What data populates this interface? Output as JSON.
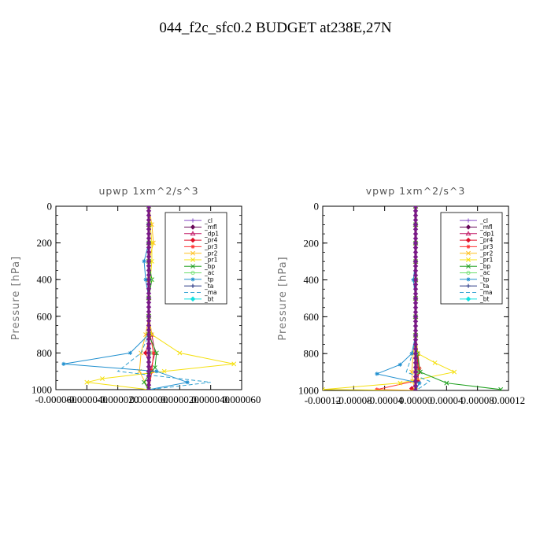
{
  "title": "044_f2c_sfc0.2  BUDGET at238E,27N",
  "chart_data": [
    {
      "type": "line",
      "title": "upwp   1xm^2/s^3",
      "ylabel": "Pressure [hPa]",
      "xlim": [
        -6e-05,
        6e-05
      ],
      "ylim": [
        1000,
        0
      ],
      "xticks": [
        -6e-05,
        -4e-05,
        -2e-05,
        0,
        2e-05,
        4e-05,
        6e-05
      ],
      "xtick_labels": [
        "-0.000060",
        "-0.000040",
        "-0.000020",
        "0.000000",
        "0.000020",
        "0.000040",
        "0.000060"
      ],
      "yticks": [
        0,
        200,
        400,
        600,
        800,
        1000
      ],
      "ytick_labels": [
        "0",
        "200",
        "400",
        "600",
        "800",
        "1000"
      ],
      "legend_position": "top-right",
      "series": [
        {
          "name": "_cl",
          "color": "#8a4fc9",
          "marker": "plus",
          "dash": "",
          "x": [
            0,
            0,
            0,
            0,
            0,
            0,
            0,
            0,
            0,
            0,
            0
          ],
          "y": [
            0,
            100,
            200,
            300,
            400,
            500,
            600,
            700,
            800,
            900,
            1000
          ]
        },
        {
          "name": "_mfl",
          "color": "#6a0a5a",
          "marker": "diamond",
          "dash": "",
          "x": [
            0,
            0,
            0,
            0,
            0,
            0,
            0,
            0,
            0,
            0,
            0
          ],
          "y": [
            0,
            100,
            200,
            300,
            400,
            500,
            600,
            700,
            800,
            900,
            1000
          ]
        },
        {
          "name": "_dp1",
          "color": "#c01060",
          "marker": "tri",
          "dash": "",
          "x": [
            0,
            0,
            0,
            0,
            0,
            0,
            0,
            2e-06,
            4e-06,
            1e-06,
            0
          ],
          "y": [
            0,
            100,
            200,
            300,
            400,
            500,
            600,
            700,
            800,
            900,
            1000
          ]
        },
        {
          "name": "_pr4",
          "color": "#e0102a",
          "marker": "diamond",
          "dash": "",
          "x": [
            0,
            0,
            0,
            0,
            0,
            0,
            0,
            1e-06,
            -2e-06,
            2e-06,
            0
          ],
          "y": [
            0,
            100,
            200,
            300,
            400,
            500,
            600,
            700,
            800,
            900,
            1000
          ]
        },
        {
          "name": "_pr3",
          "color": "#ff3030",
          "marker": "star",
          "dash": "",
          "x": [
            0,
            0,
            0,
            0,
            0,
            0,
            0,
            1e-06,
            3e-06,
            2e-06,
            0
          ],
          "y": [
            0,
            100,
            200,
            300,
            400,
            500,
            600,
            700,
            800,
            900,
            1000
          ]
        },
        {
          "name": "_pr2",
          "color": "#ffc020",
          "marker": "cross",
          "dash": "",
          "x": [
            0,
            2e-06,
            3e-06,
            0,
            0,
            0,
            0,
            -2e-06,
            -5e-06,
            -6e-06,
            0
          ],
          "y": [
            0,
            100,
            200,
            300,
            400,
            500,
            600,
            700,
            800,
            900,
            1000
          ]
        },
        {
          "name": "_pr1",
          "color": "#f5e010",
          "marker": "cross",
          "dash": "",
          "x": [
            0,
            1e-06,
            2e-06,
            2e-06,
            1e-06,
            0,
            0,
            2e-06,
            2e-05,
            5.5e-05,
            1e-05,
            -3e-05,
            -4e-05,
            0
          ],
          "y": [
            0,
            100,
            200,
            300,
            400,
            500,
            600,
            700,
            800,
            860,
            900,
            940,
            960,
            1000
          ]
        },
        {
          "name": "_bp",
          "color": "#20a020",
          "marker": "cross",
          "dash": "",
          "x": [
            0,
            0,
            0,
            0,
            2e-06,
            0,
            0,
            0,
            5e-06,
            4e-06,
            0,
            -3e-06,
            0
          ],
          "y": [
            0,
            100,
            200,
            300,
            400,
            500,
            600,
            700,
            800,
            880,
            920,
            960,
            1000
          ]
        },
        {
          "name": "_ac",
          "color": "#70e070",
          "marker": "circle",
          "dash": "",
          "x": [
            0,
            0,
            0,
            0,
            1e-06,
            0,
            0,
            0,
            1e-06,
            0,
            0
          ],
          "y": [
            0,
            100,
            200,
            300,
            400,
            500,
            600,
            700,
            800,
            900,
            1000
          ]
        },
        {
          "name": "_tp",
          "color": "#1f8fcf",
          "marker": "star",
          "dash": "",
          "x": [
            0,
            0,
            0,
            -3e-06,
            -2e-06,
            0,
            0,
            0,
            -1.2e-05,
            -5.5e-05,
            5e-06,
            2.5e-05,
            0
          ],
          "y": [
            0,
            100,
            200,
            300,
            400,
            500,
            600,
            700,
            800,
            860,
            900,
            960,
            1000
          ]
        },
        {
          "name": "_ta",
          "color": "#203080",
          "marker": "plus",
          "dash": "",
          "x": [
            0,
            0,
            0,
            0,
            0,
            0,
            0,
            0,
            0,
            0,
            0
          ],
          "y": [
            0,
            100,
            200,
            300,
            400,
            500,
            600,
            700,
            800,
            900,
            1000
          ]
        },
        {
          "name": "_ma",
          "color": "#30a0d0",
          "marker": "none",
          "dash": "5 3",
          "x": [
            0,
            0,
            0,
            0,
            0,
            0,
            0,
            0,
            -5e-06,
            -2e-05,
            4e-05,
            2e-05,
            0
          ],
          "y": [
            0,
            100,
            200,
            300,
            400,
            500,
            600,
            700,
            800,
            900,
            960,
            980,
            1000
          ]
        },
        {
          "name": "_bt",
          "color": "#10e0e0",
          "marker": "diamond",
          "dash": "",
          "x": [
            0,
            0,
            0,
            0,
            0,
            0,
            0,
            0,
            0,
            0,
            0
          ],
          "y": [
            0,
            100,
            200,
            300,
            400,
            500,
            600,
            700,
            800,
            900,
            1000
          ]
        }
      ]
    },
    {
      "type": "line",
      "title": "vpwp   1xm^2/s^3",
      "ylabel": "Pressure [hPa]",
      "xlim": [
        -0.00012,
        0.00012
      ],
      "ylim": [
        1000,
        0
      ],
      "xticks": [
        -0.00012,
        -8e-05,
        -4e-05,
        0,
        4e-05,
        8e-05,
        0.00012
      ],
      "xtick_labels": [
        "-0.00012",
        "-0.00008",
        "-0.00004",
        "0.00000",
        "0.00004",
        "0.00008",
        "0.00012"
      ],
      "yticks": [
        0,
        200,
        400,
        600,
        800,
        1000
      ],
      "ytick_labels": [
        "0",
        "200",
        "400",
        "600",
        "800",
        "1000"
      ],
      "legend_position": "top-right",
      "series": [
        {
          "name": "_cl",
          "color": "#8a4fc9",
          "marker": "plus",
          "dash": "",
          "x": [
            0,
            0,
            0,
            0,
            0,
            0,
            0,
            0,
            0,
            0,
            0
          ],
          "y": [
            0,
            100,
            200,
            300,
            400,
            500,
            600,
            700,
            800,
            900,
            1000
          ]
        },
        {
          "name": "_mfl",
          "color": "#6a0a5a",
          "marker": "diamond",
          "dash": "",
          "x": [
            0,
            0,
            0,
            0,
            0,
            0,
            0,
            0,
            0,
            0,
            0
          ],
          "y": [
            0,
            100,
            200,
            300,
            400,
            500,
            600,
            700,
            800,
            900,
            1000
          ]
        },
        {
          "name": "_dp1",
          "color": "#c01060",
          "marker": "tri",
          "dash": "",
          "x": [
            0,
            0,
            0,
            0,
            0,
            0,
            0,
            0,
            2e-06,
            3e-06,
            0
          ],
          "y": [
            0,
            100,
            200,
            300,
            400,
            500,
            600,
            700,
            800,
            900,
            1000
          ]
        },
        {
          "name": "_pr4",
          "color": "#e0102a",
          "marker": "diamond",
          "dash": "",
          "x": [
            0,
            0,
            0,
            0,
            0,
            0,
            0,
            0,
            2e-06,
            4e-06,
            3e-06,
            -5e-06,
            0
          ],
          "y": [
            0,
            100,
            200,
            300,
            400,
            500,
            600,
            700,
            800,
            900,
            950,
            990,
            1000
          ]
        },
        {
          "name": "_pr3",
          "color": "#ff3030",
          "marker": "star",
          "dash": "",
          "x": [
            0,
            0,
            0,
            0,
            0,
            0,
            0,
            0,
            3e-06,
            5e-06,
            -2e-06,
            -5e-05,
            0
          ],
          "y": [
            0,
            100,
            200,
            300,
            400,
            500,
            600,
            700,
            800,
            880,
            950,
            995,
            1000
          ]
        },
        {
          "name": "_pr2",
          "color": "#ffc020",
          "marker": "cross",
          "dash": "",
          "x": [
            0,
            0,
            0,
            0,
            0,
            0,
            0,
            0,
            -3e-06,
            -5e-06,
            -4e-06,
            0
          ],
          "y": [
            0,
            100,
            200,
            300,
            400,
            500,
            600,
            700,
            800,
            900,
            950,
            1000
          ]
        },
        {
          "name": "_pr1",
          "color": "#f5e010",
          "marker": "cross",
          "dash": "",
          "x": [
            0,
            0,
            0,
            0,
            0,
            0,
            0,
            0,
            3e-06,
            2.5e-05,
            5e-05,
            -2e-05,
            -0.00012,
            0
          ],
          "y": [
            0,
            100,
            200,
            300,
            400,
            500,
            600,
            700,
            800,
            850,
            900,
            960,
            995,
            1000
          ]
        },
        {
          "name": "_bp",
          "color": "#20a020",
          "marker": "cross",
          "dash": "",
          "x": [
            0,
            0,
            0,
            0,
            0,
            0,
            0,
            0,
            2e-06,
            6e-06,
            4e-05,
            0.00011
          ],
          "y": [
            0,
            100,
            200,
            300,
            400,
            500,
            600,
            700,
            800,
            900,
            960,
            995
          ]
        },
        {
          "name": "_ac",
          "color": "#70e070",
          "marker": "circle",
          "dash": "",
          "x": [
            0,
            0,
            0,
            0,
            0,
            0,
            0,
            0,
            1e-06,
            2e-06,
            0
          ],
          "y": [
            0,
            100,
            200,
            300,
            400,
            500,
            600,
            700,
            800,
            900,
            1000
          ]
        },
        {
          "name": "_tp",
          "color": "#1f8fcf",
          "marker": "star",
          "dash": "",
          "x": [
            0,
            0,
            0,
            0,
            -3e-06,
            0,
            0,
            0,
            -5e-06,
            -2e-05,
            -5e-05,
            5e-06,
            0
          ],
          "y": [
            0,
            100,
            200,
            300,
            400,
            500,
            600,
            700,
            800,
            860,
            910,
            960,
            1000
          ]
        },
        {
          "name": "_ta",
          "color": "#203080",
          "marker": "plus",
          "dash": "",
          "x": [
            0,
            0,
            0,
            0,
            0,
            0,
            0,
            0,
            0,
            0,
            0
          ],
          "y": [
            0,
            100,
            200,
            300,
            400,
            500,
            600,
            700,
            800,
            900,
            1000
          ]
        },
        {
          "name": "_ma",
          "color": "#30a0d0",
          "marker": "none",
          "dash": "5 3",
          "x": [
            0,
            0,
            0,
            0,
            0,
            0,
            0,
            0,
            -4e-06,
            -1.2e-05,
            1.8e-05,
            8e-06,
            0
          ],
          "y": [
            0,
            100,
            200,
            300,
            400,
            500,
            600,
            700,
            800,
            900,
            950,
            980,
            1000
          ]
        },
        {
          "name": "_bt",
          "color": "#10e0e0",
          "marker": "diamond",
          "dash": "",
          "x": [
            0,
            0,
            0,
            0,
            0,
            0,
            0,
            0,
            0,
            0,
            0
          ],
          "y": [
            0,
            100,
            200,
            300,
            400,
            500,
            600,
            700,
            800,
            900,
            1000
          ]
        }
      ]
    }
  ]
}
